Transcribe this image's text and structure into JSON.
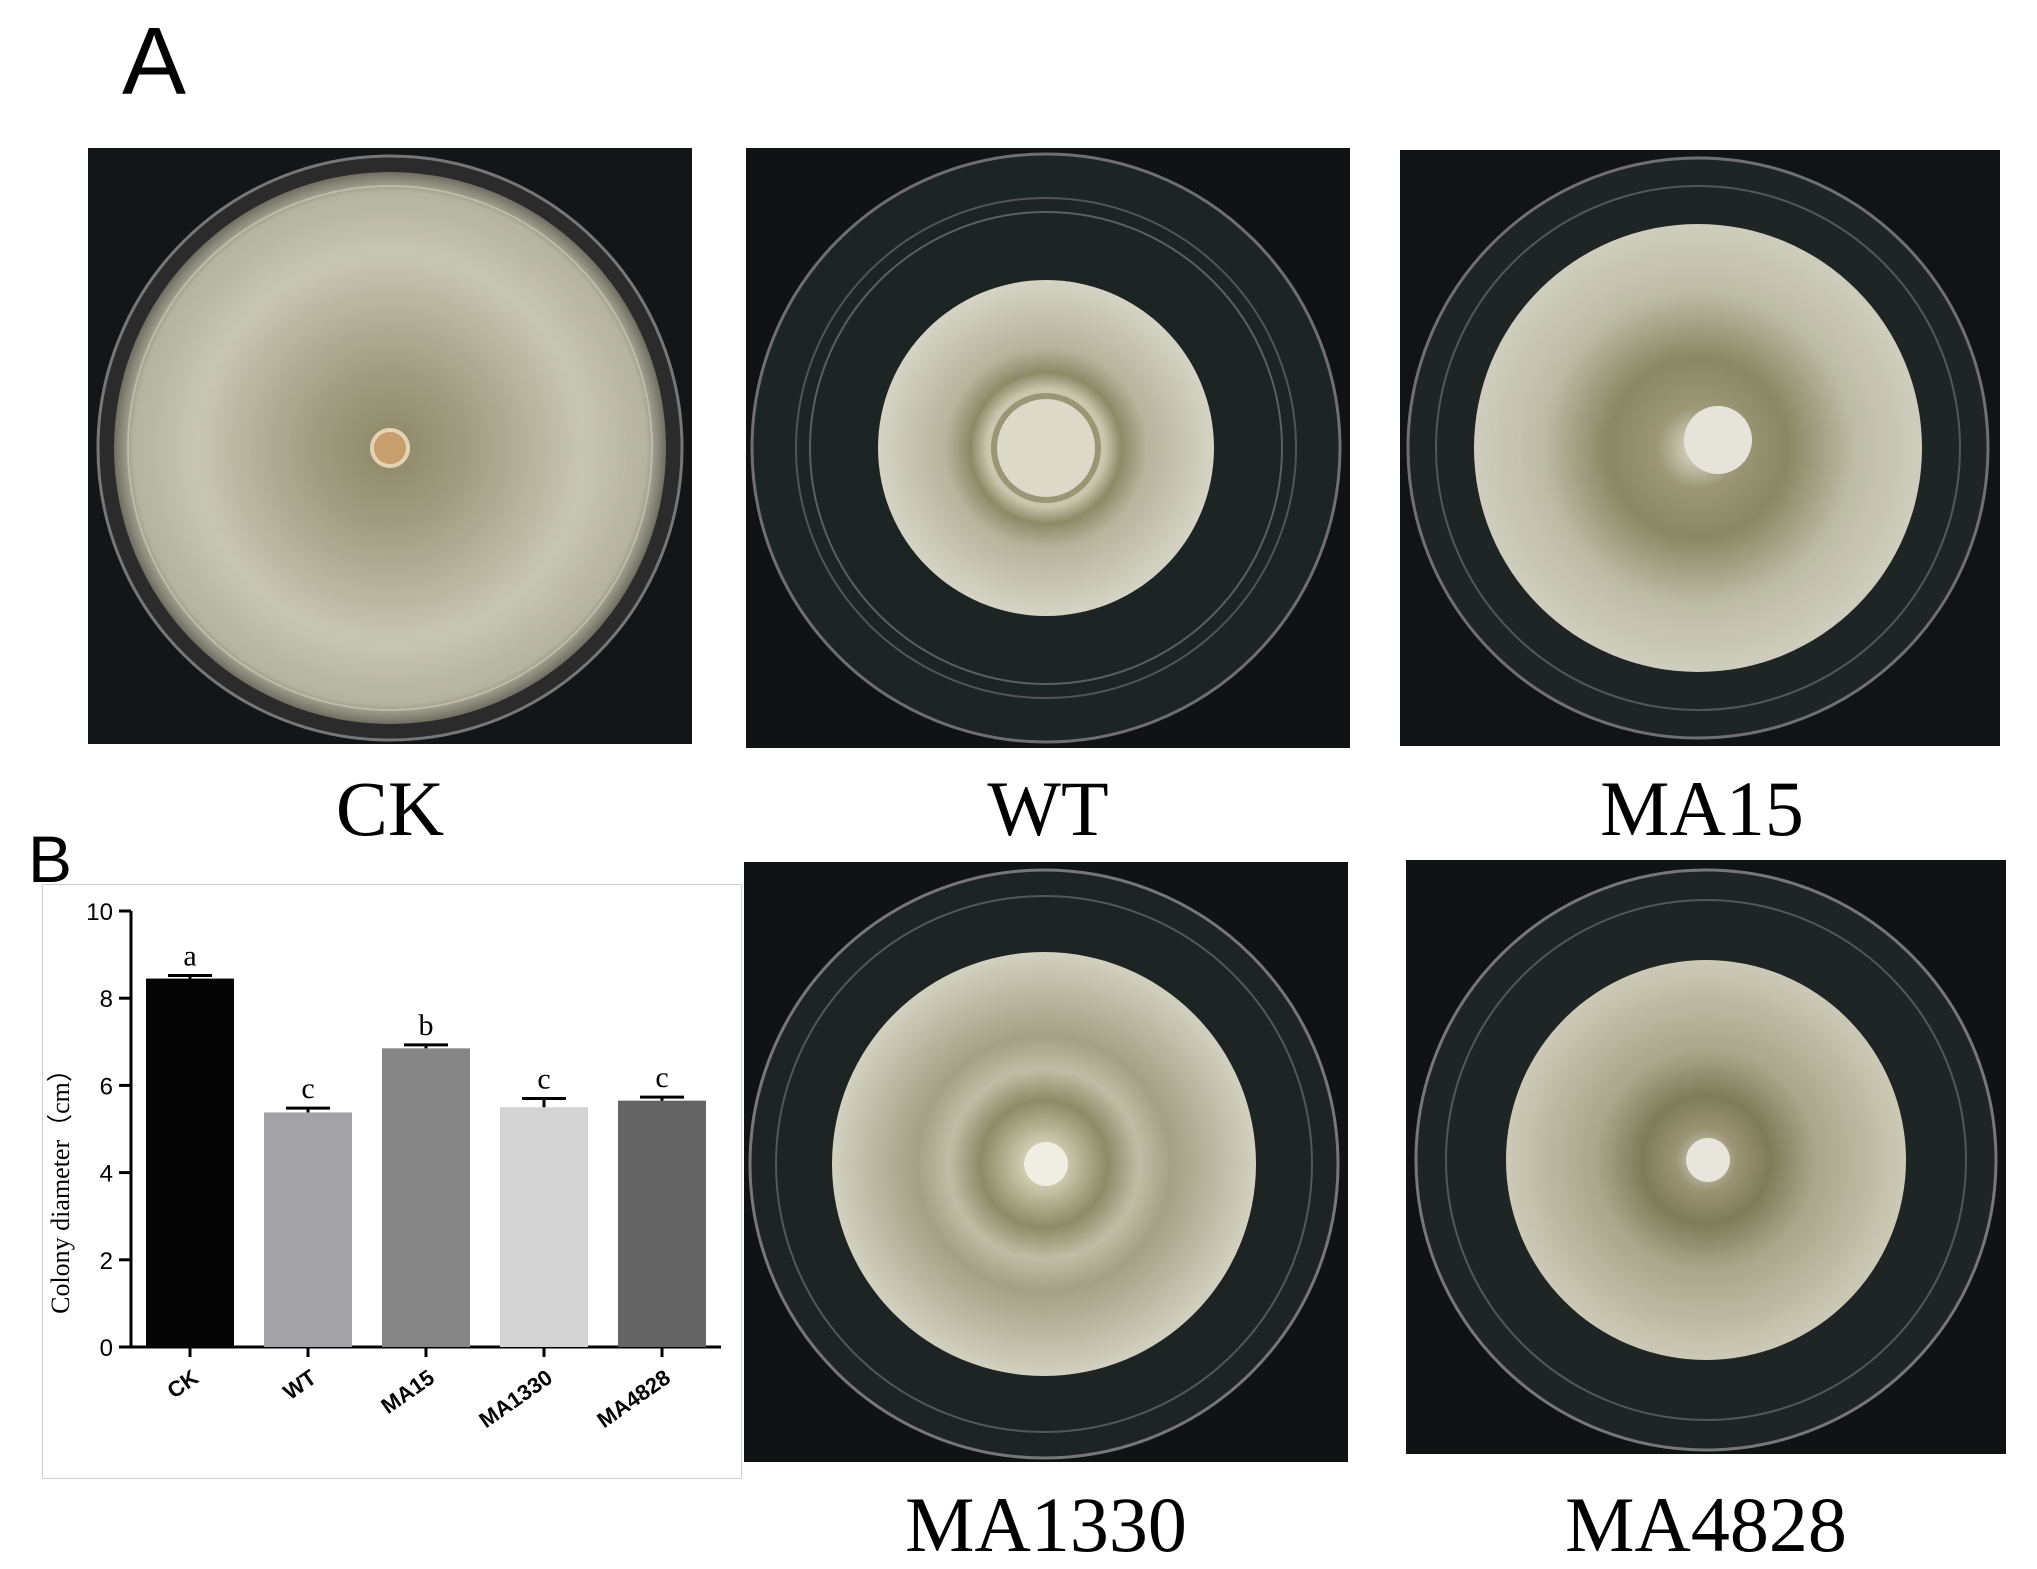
{
  "panels": {
    "a_label": "A",
    "b_label": "B"
  },
  "dishes": [
    {
      "key": "ck",
      "label": "CK"
    },
    {
      "key": "wt",
      "label": "WT"
    },
    {
      "key": "ma15",
      "label": "MA15"
    },
    {
      "key": "ma1330",
      "label": "MA1330"
    },
    {
      "key": "ma4828",
      "label": "MA4828"
    }
  ],
  "colors": {
    "photo_background": "#111214",
    "colony_fill": "#c9c7ae",
    "colony_core": "#8f8a63",
    "inoculum": "#e9e4d3"
  },
  "chart_data": {
    "type": "bar",
    "title": "",
    "xlabel": "",
    "ylabel": "Colony diameter（cm）",
    "ylim": [
      0,
      10
    ],
    "yticks": [
      "0",
      "2",
      "4",
      "6",
      "8",
      "10"
    ],
    "categories": [
      "CK",
      "WT",
      "MA15",
      "MA1330",
      "MA4828"
    ],
    "values": [
      8.45,
      5.38,
      6.85,
      5.5,
      5.65
    ],
    "errors": [
      0.07,
      0.1,
      0.08,
      0.2,
      0.08
    ],
    "letters": [
      "a",
      "c",
      "b",
      "c",
      "c"
    ],
    "bar_colors": [
      "#050505",
      "#a3a3a7",
      "#858585",
      "#d4d4d4",
      "#646464"
    ],
    "grid": false
  }
}
